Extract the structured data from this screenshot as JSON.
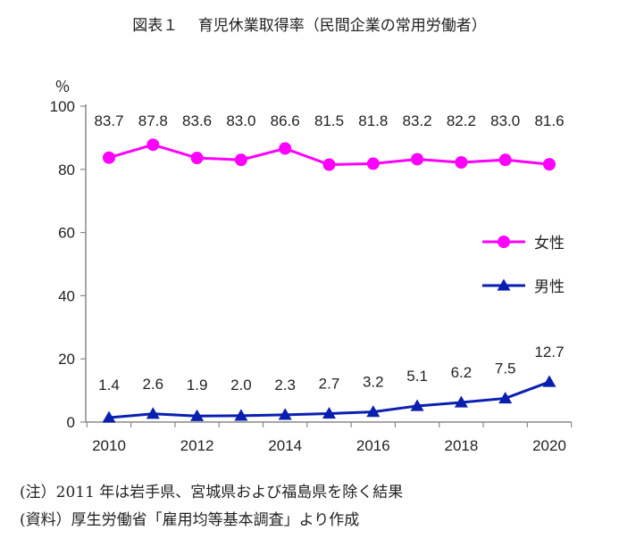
{
  "title": "図表１　 育児休業取得率（民間企業の常用労働者）",
  "notes": {
    "note1": "(注）2011 年は岩手県、宮城県および福島県を除く結果",
    "note2": "(資料）厚生労働省「雇用均等基本調査」より作成"
  },
  "colors": {
    "female": "#ff00ff",
    "male": "#0a1fb0",
    "axis": "#888888"
  },
  "chart_data": {
    "type": "line",
    "unit": "％",
    "x": [
      2010,
      2011,
      2012,
      2013,
      2014,
      2015,
      2016,
      2017,
      2018,
      2019,
      2020
    ],
    "xticks": [
      "2010",
      "2012",
      "2014",
      "2016",
      "2018",
      "2020"
    ],
    "xtick_values": [
      2010,
      2012,
      2014,
      2016,
      2018,
      2020
    ],
    "yticks": [
      "0",
      "20",
      "40",
      "60",
      "80",
      "100"
    ],
    "ytick_values": [
      0,
      20,
      40,
      60,
      80,
      100
    ],
    "ylim": [
      0,
      100
    ],
    "series": [
      {
        "name": "女性",
        "marker": "circle",
        "values": [
          83.7,
          87.8,
          83.6,
          83.0,
          86.6,
          81.5,
          81.8,
          83.2,
          82.2,
          83.0,
          81.6
        ],
        "labels": [
          "83.7",
          "87.8",
          "83.6",
          "83.0",
          "86.6",
          "81.5",
          "81.8",
          "83.2",
          "82.2",
          "83.0",
          "81.6"
        ]
      },
      {
        "name": "男性",
        "marker": "triangle",
        "values": [
          1.4,
          2.6,
          1.9,
          2.0,
          2.3,
          2.7,
          3.2,
          5.1,
          6.2,
          7.5,
          12.7
        ],
        "labels": [
          "1.4",
          "2.6",
          "1.9",
          "2.0",
          "2.3",
          "2.7",
          "3.2",
          "5.1",
          "6.2",
          "7.5",
          "12.7"
        ]
      }
    ],
    "legend": {
      "position": "right"
    }
  }
}
